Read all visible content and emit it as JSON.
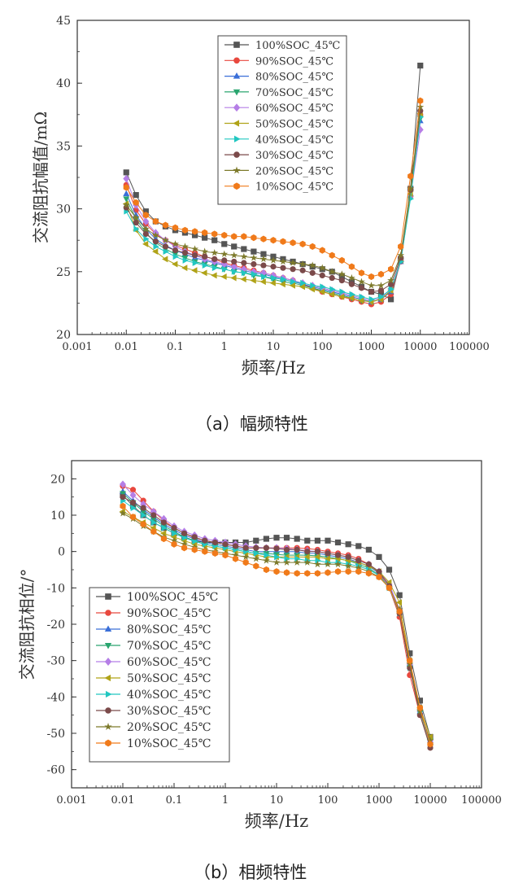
{
  "captions": [
    "（a）幅频特性",
    "（b）相频特性"
  ],
  "series_styles": [
    {
      "color": "#555555",
      "marker": "square"
    },
    {
      "color": "#e8483e",
      "marker": "circle"
    },
    {
      "color": "#3a6fd8",
      "marker": "triangle-up"
    },
    {
      "color": "#2aa56f",
      "marker": "triangle-down"
    },
    {
      "color": "#b57ee6",
      "marker": "diamond"
    },
    {
      "color": "#b0a318",
      "marker": "triangle-left"
    },
    {
      "color": "#21c7c1",
      "marker": "triangle-right"
    },
    {
      "color": "#7b4a4a",
      "marker": "circle"
    },
    {
      "color": "#7d7a2b",
      "marker": "star"
    },
    {
      "color": "#f07a1a",
      "marker": "hexagon"
    }
  ],
  "chart_data": [
    {
      "type": "scatter",
      "title": "",
      "xlabel": "频率/Hz",
      "ylabel": "交流阻抗幅值/mΩ",
      "xscale": "log",
      "xlim": [
        0.001,
        100000
      ],
      "ylim": [
        20,
        45
      ],
      "xticks": [
        "0.001",
        "0.01",
        "0.1",
        "1",
        "10",
        "100",
        "1000",
        "10000",
        "100000"
      ],
      "yticks": [
        "20",
        "25",
        "30",
        "35",
        "40",
        "45"
      ],
      "legend_position": "top-right",
      "x": [
        0.01,
        0.0158,
        0.0251,
        0.0398,
        0.0631,
        0.1,
        0.158,
        0.251,
        0.398,
        0.631,
        1,
        1.58,
        2.51,
        3.98,
        6.31,
        10,
        15.8,
        25.1,
        39.8,
        63.1,
        100,
        158,
        251,
        398,
        631,
        1000,
        1580,
        2510,
        3980,
        6310,
        10000
      ],
      "series": [
        {
          "name": "100%SOC_45℃",
          "values": [
            32.9,
            31.1,
            29.8,
            29.0,
            28.6,
            28.3,
            28.1,
            27.9,
            27.7,
            27.5,
            27.2,
            27.0,
            26.8,
            26.6,
            26.4,
            26.2,
            26.0,
            25.8,
            25.6,
            25.4,
            25.2,
            25.0,
            24.6,
            24.2,
            23.8,
            23.4,
            23.2,
            22.8,
            26.0,
            31.6,
            41.4
          ]
        },
        {
          "name": "90%SOC_45℃",
          "values": [
            31.9,
            29.9,
            28.8,
            28.0,
            27.5,
            27.1,
            26.8,
            26.5,
            26.2,
            26.0,
            25.7,
            25.5,
            25.3,
            25.1,
            24.9,
            24.7,
            24.5,
            24.3,
            24.0,
            23.7,
            23.4,
            23.2,
            23.0,
            22.8,
            22.6,
            22.4,
            22.6,
            23.2,
            25.8,
            31.0,
            37.5
          ]
        },
        {
          "name": "80%SOC_45℃",
          "values": [
            31.2,
            29.5,
            28.4,
            27.6,
            27.1,
            26.7,
            26.4,
            26.1,
            25.9,
            25.7,
            25.5,
            25.3,
            25.1,
            24.9,
            24.8,
            24.6,
            24.4,
            24.2,
            24.0,
            23.8,
            23.6,
            23.4,
            23.2,
            23.0,
            22.8,
            22.6,
            22.8,
            23.4,
            25.8,
            31.2,
            37.0
          ]
        },
        {
          "name": "70%SOC_45℃",
          "values": [
            30.8,
            29.2,
            28.1,
            27.3,
            26.8,
            26.4,
            26.1,
            25.8,
            25.6,
            25.4,
            25.2,
            25.0,
            24.9,
            24.7,
            24.6,
            24.4,
            24.2,
            24.1,
            23.9,
            23.7,
            23.5,
            23.3,
            23.1,
            22.9,
            22.7,
            22.6,
            22.8,
            23.5,
            25.9,
            31.4,
            37.2
          ]
        },
        {
          "name": "60%SOC_45℃",
          "values": [
            32.4,
            30.3,
            29.0,
            28.1,
            27.5,
            27.0,
            26.6,
            26.3,
            26.0,
            25.8,
            25.6,
            25.4,
            25.2,
            25.0,
            24.9,
            24.7,
            24.5,
            24.3,
            24.1,
            23.9,
            23.7,
            23.5,
            23.3,
            23.1,
            22.9,
            22.7,
            22.9,
            23.6,
            26.0,
            31.0,
            36.3
          ]
        },
        {
          "name": "50%SOC_45℃",
          "values": [
            30.4,
            28.3,
            27.2,
            26.6,
            26.0,
            25.6,
            25.3,
            25.1,
            24.9,
            24.7,
            24.6,
            24.5,
            24.4,
            24.3,
            24.2,
            24.1,
            24.0,
            23.9,
            23.8,
            23.6,
            23.4,
            23.2,
            23.0,
            22.9,
            22.7,
            22.6,
            22.8,
            23.5,
            25.9,
            31.2,
            37.6
          ]
        },
        {
          "name": "40%SOC_45℃",
          "values": [
            29.8,
            28.4,
            27.6,
            27.0,
            26.6,
            26.2,
            25.9,
            25.7,
            25.5,
            25.3,
            25.2,
            25.0,
            24.9,
            24.8,
            24.6,
            24.5,
            24.4,
            24.2,
            24.1,
            23.9,
            23.8,
            23.6,
            23.4,
            23.2,
            23.0,
            22.8,
            23.0,
            23.6,
            25.8,
            30.8,
            37.3
          ]
        },
        {
          "name": "30%SOC_45℃",
          "values": [
            30.1,
            28.9,
            28.0,
            27.4,
            27.0,
            26.7,
            26.5,
            26.3,
            26.2,
            26.0,
            25.9,
            25.8,
            25.7,
            25.6,
            25.5,
            25.4,
            25.3,
            25.2,
            25.1,
            24.9,
            24.7,
            24.5,
            24.3,
            24.0,
            23.7,
            23.4,
            23.5,
            24.0,
            26.1,
            31.5,
            37.8
          ]
        },
        {
          "name": "20%SOC_45℃",
          "values": [
            30.3,
            29.3,
            28.4,
            27.9,
            27.5,
            27.2,
            27.0,
            26.8,
            26.6,
            26.5,
            26.4,
            26.3,
            26.2,
            26.1,
            26.0,
            25.9,
            25.8,
            25.7,
            25.6,
            25.5,
            25.3,
            25.0,
            24.8,
            24.5,
            24.2,
            23.9,
            23.9,
            24.3,
            26.3,
            31.6,
            38.1
          ]
        },
        {
          "name": "10%SOC_45℃",
          "values": [
            31.7,
            30.5,
            29.5,
            29.0,
            28.7,
            28.5,
            28.3,
            28.2,
            28.1,
            28.0,
            27.9,
            27.8,
            27.8,
            27.7,
            27.6,
            27.5,
            27.4,
            27.3,
            27.2,
            27.0,
            26.7,
            26.3,
            25.9,
            25.4,
            24.9,
            24.6,
            24.8,
            25.2,
            27.0,
            32.6,
            38.6
          ]
        }
      ]
    },
    {
      "type": "scatter",
      "title": "",
      "xlabel": "频率/Hz",
      "ylabel": "交流阻抗相位/°",
      "xscale": "log",
      "xlim": [
        0.001,
        100000
      ],
      "ylim": [
        -65,
        25
      ],
      "xticks": [
        "0.001",
        "0.01",
        "0.1",
        "1",
        "10",
        "100",
        "1000",
        "10000",
        "100000"
      ],
      "yticks": [
        "20",
        "10",
        "0",
        "-10",
        "-20",
        "-30",
        "-40",
        "-50",
        "-60"
      ],
      "legend_position": "bottom-left",
      "x": [
        0.01,
        0.0158,
        0.0251,
        0.0398,
        0.0631,
        0.1,
        0.158,
        0.251,
        0.398,
        0.631,
        1,
        1.58,
        2.51,
        3.98,
        6.31,
        10,
        15.8,
        25.1,
        39.8,
        63.1,
        100,
        158,
        251,
        398,
        631,
        1000,
        1580,
        2510,
        3980,
        6310,
        10000
      ],
      "series": [
        {
          "name": "100%SOC_45℃",
          "values": [
            15.5,
            12.5,
            10.0,
            8.0,
            6.5,
            5.0,
            4.0,
            3.0,
            2.5,
            2.5,
            2.5,
            2.5,
            2.5,
            3.0,
            3.5,
            3.8,
            3.8,
            3.5,
            3.0,
            3.0,
            3.0,
            2.5,
            2.0,
            1.5,
            0.5,
            -1.5,
            -5.0,
            -12.0,
            -28.0,
            -41.0,
            -51.0
          ]
        },
        {
          "name": "90%SOC_45℃",
          "values": [
            18.0,
            17.0,
            14.0,
            11.0,
            8.5,
            6.5,
            5.0,
            3.8,
            3.0,
            2.5,
            2.0,
            1.5,
            1.0,
            1.0,
            1.0,
            1.0,
            1.0,
            1.0,
            0.8,
            0.5,
            0.0,
            -0.5,
            -1.0,
            -2.0,
            -3.5,
            -6.0,
            -10.0,
            -18.0,
            -34.0,
            -45.0,
            -53.0
          ]
        },
        {
          "name": "80%SOC_45℃",
          "values": [
            16.5,
            14.0,
            11.5,
            9.5,
            7.5,
            6.0,
            4.5,
            3.5,
            2.5,
            2.0,
            1.5,
            1.0,
            0.5,
            0.0,
            0.0,
            0.0,
            0.0,
            0.0,
            -0.5,
            -0.5,
            -1.0,
            -1.5,
            -2.0,
            -3.0,
            -4.0,
            -6.0,
            -9.0,
            -16.0,
            -31.0,
            -44.0,
            -52.0
          ]
        },
        {
          "name": "70%SOC_45℃",
          "values": [
            16.0,
            13.5,
            11.0,
            9.0,
            7.0,
            5.5,
            4.0,
            3.0,
            2.0,
            1.5,
            1.0,
            0.5,
            0.0,
            -0.5,
            -0.5,
            -0.8,
            -1.0,
            -1.0,
            -1.0,
            -1.2,
            -1.5,
            -2.0,
            -2.5,
            -3.5,
            -4.5,
            -6.5,
            -10.0,
            -17.0,
            -32.0,
            -44.0,
            -52.0
          ]
        },
        {
          "name": "60%SOC_45℃",
          "values": [
            18.5,
            15.5,
            13.0,
            11.0,
            9.0,
            7.0,
            5.5,
            4.5,
            3.5,
            3.0,
            2.5,
            2.0,
            1.5,
            1.2,
            1.0,
            1.0,
            0.8,
            0.5,
            0.2,
            0.0,
            -0.5,
            -1.0,
            -1.5,
            -2.5,
            -3.5,
            -5.5,
            -9.0,
            -16.0,
            -31.0,
            -44.0,
            -52.0
          ]
        },
        {
          "name": "50%SOC_45℃",
          "values": [
            11.0,
            9.5,
            8.0,
            6.5,
            5.0,
            4.0,
            3.0,
            2.0,
            1.5,
            1.0,
            0.5,
            0.0,
            -0.5,
            -1.0,
            -1.5,
            -1.5,
            -1.5,
            -1.5,
            -1.5,
            -1.5,
            -2.0,
            -2.0,
            -2.5,
            -3.0,
            -4.0,
            -5.5,
            -8.5,
            -14.0,
            -30.0,
            -43.0,
            -51.0
          ]
        },
        {
          "name": "40%SOC_45℃",
          "values": [
            14.0,
            12.0,
            10.0,
            8.0,
            6.5,
            5.0,
            3.8,
            2.8,
            2.0,
            1.5,
            1.0,
            0.5,
            0.0,
            -0.5,
            -1.0,
            -1.5,
            -2.0,
            -2.0,
            -2.5,
            -2.5,
            -3.0,
            -3.0,
            -3.5,
            -4.0,
            -5.0,
            -6.5,
            -10.0,
            -17.0,
            -32.0,
            -44.0,
            -53.0
          ]
        },
        {
          "name": "30%SOC_45℃",
          "values": [
            15.0,
            13.5,
            12.0,
            10.0,
            8.0,
            6.5,
            5.0,
            4.0,
            3.0,
            2.5,
            2.0,
            1.5,
            1.0,
            1.0,
            1.0,
            0.8,
            0.5,
            0.5,
            0.0,
            0.0,
            -0.5,
            -1.0,
            -1.5,
            -2.5,
            -3.5,
            -5.5,
            -9.5,
            -17.0,
            -32.0,
            -45.0,
            -54.0
          ]
        },
        {
          "name": "20%SOC_45℃",
          "values": [
            10.5,
            9.0,
            7.0,
            5.5,
            4.0,
            3.0,
            2.0,
            1.2,
            0.5,
            0.0,
            -0.5,
            -1.0,
            -1.5,
            -2.0,
            -2.5,
            -3.0,
            -3.0,
            -3.0,
            -3.0,
            -3.5,
            -3.5,
            -3.5,
            -4.0,
            -4.5,
            -5.5,
            -7.0,
            -10.0,
            -16.0,
            -31.0,
            -44.0,
            -52.0
          ]
        },
        {
          "name": "10%SOC_45℃",
          "values": [
            12.5,
            9.5,
            7.5,
            5.5,
            3.5,
            2.0,
            1.0,
            0.5,
            0.0,
            -0.5,
            -1.0,
            -2.0,
            -3.0,
            -4.0,
            -5.0,
            -5.5,
            -5.8,
            -6.0,
            -6.0,
            -6.0,
            -5.8,
            -5.5,
            -5.5,
            -5.5,
            -6.0,
            -7.0,
            -10.0,
            -16.5,
            -30.0,
            -43.0,
            -53.0
          ]
        }
      ]
    }
  ]
}
